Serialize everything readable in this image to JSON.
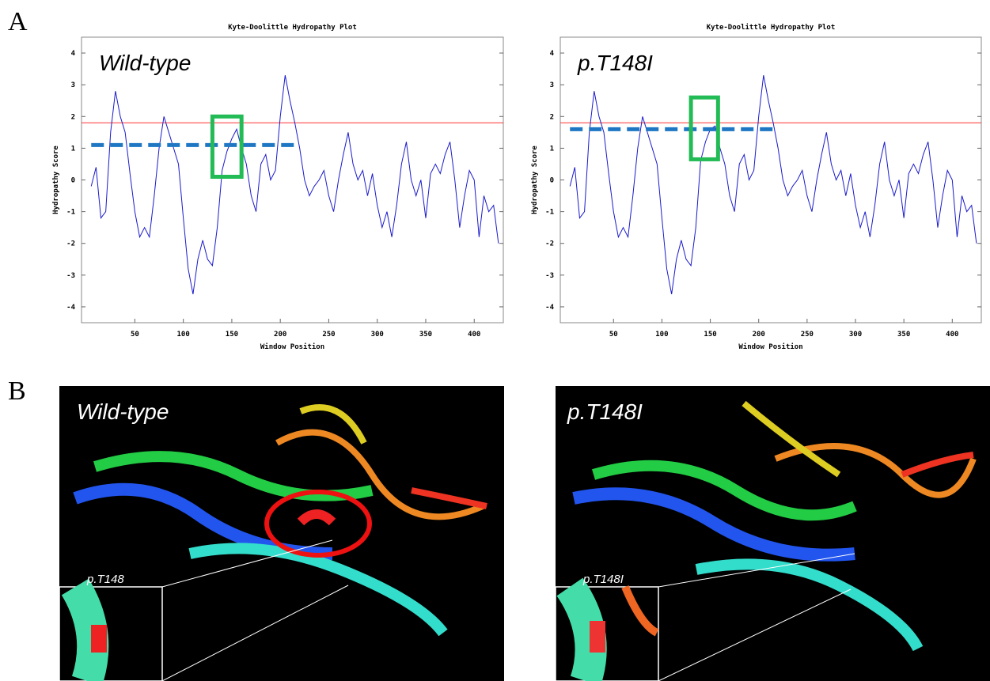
{
  "panel_labels": [
    "A",
    "B"
  ],
  "chart_data": [
    {
      "type": "line",
      "title": "Kyte-Doolittle Hydropathy Plot",
      "annotation": "Wild-type",
      "x_label": "Window Position",
      "y_label": "Hydropathy Score",
      "color": "#1a1acc",
      "xlim": [
        -5,
        430
      ],
      "ylim": [
        -4.5,
        4.5
      ],
      "xticks": [
        50,
        100,
        150,
        200,
        250,
        300,
        350,
        400
      ],
      "yticks": [
        -4,
        -3,
        -2,
        -1,
        0,
        1,
        2,
        3,
        4
      ],
      "threshold": {
        "value": 1.8,
        "color": "#ff3333"
      },
      "mean_line": {
        "value": 1.1,
        "x": [
          5,
          220
        ],
        "color": "#1f77c4"
      },
      "highlight_box": {
        "x": [
          130,
          160
        ],
        "y": [
          0.1,
          2.0
        ],
        "color": "#22bb55"
      },
      "x": [
        5,
        10,
        15,
        20,
        25,
        30,
        35,
        40,
        45,
        50,
        55,
        60,
        65,
        70,
        75,
        80,
        85,
        90,
        95,
        100,
        105,
        110,
        115,
        120,
        125,
        130,
        135,
        140,
        145,
        150,
        155,
        160,
        165,
        170,
        175,
        180,
        185,
        190,
        195,
        200,
        205,
        210,
        215,
        220,
        225,
        230,
        235,
        240,
        245,
        250,
        255,
        260,
        265,
        270,
        275,
        280,
        285,
        290,
        295,
        300,
        305,
        310,
        315,
        320,
        325,
        330,
        335,
        340,
        345,
        350,
        355,
        360,
        365,
        370,
        375,
        380,
        385,
        390,
        395,
        400,
        405,
        410,
        415,
        420,
        425
      ],
      "values": [
        -0.2,
        0.4,
        -1.2,
        -1.0,
        1.5,
        2.8,
        2.0,
        1.5,
        0.2,
        -1.0,
        -1.8,
        -1.5,
        -1.8,
        -0.5,
        1.0,
        2.0,
        1.5,
        1.0,
        0.5,
        -1.2,
        -2.8,
        -3.6,
        -2.5,
        -1.9,
        -2.5,
        -2.7,
        -1.5,
        0.3,
        0.9,
        1.3,
        1.6,
        1.0,
        0.5,
        -0.5,
        -1.0,
        0.5,
        0.8,
        0.0,
        0.3,
        2.0,
        3.3,
        2.5,
        1.8,
        1.0,
        0.0,
        -0.5,
        -0.2,
        0.0,
        0.3,
        -0.5,
        -1.0,
        0.0,
        0.8,
        1.5,
        0.5,
        0.0,
        0.3,
        -0.5,
        0.2,
        -0.8,
        -1.5,
        -1.0,
        -1.8,
        -0.8,
        0.5,
        1.2,
        0.0,
        -0.5,
        0.0,
        -1.2,
        0.2,
        0.5,
        0.2,
        0.8,
        1.2,
        0.0,
        -1.5,
        -0.5,
        0.3,
        0.0,
        -1.8,
        -0.5,
        -1.0,
        -0.8,
        -2.0
      ]
    },
    {
      "type": "line",
      "title": "Kyte-Doolittle Hydropathy Plot",
      "annotation": "p.T148I",
      "x_label": "Window Position",
      "y_label": "Hydropathy Score",
      "color": "#1a1acc",
      "xlim": [
        -5,
        430
      ],
      "ylim": [
        -4.5,
        4.5
      ],
      "xticks": [
        50,
        100,
        150,
        200,
        250,
        300,
        350,
        400
      ],
      "yticks": [
        -4,
        -3,
        -2,
        -1,
        0,
        1,
        2,
        3,
        4
      ],
      "threshold": {
        "value": 1.8,
        "color": "#ff3333"
      },
      "mean_line": {
        "value": 1.6,
        "x": [
          5,
          218
        ],
        "color": "#1f77c4"
      },
      "highlight_box": {
        "x": [
          130,
          158
        ],
        "y": [
          0.65,
          2.6
        ],
        "color": "#22bb55"
      },
      "x": [
        5,
        10,
        15,
        20,
        25,
        30,
        35,
        40,
        45,
        50,
        55,
        60,
        65,
        70,
        75,
        80,
        85,
        90,
        95,
        100,
        105,
        110,
        115,
        120,
        125,
        130,
        135,
        140,
        145,
        150,
        155,
        160,
        165,
        170,
        175,
        180,
        185,
        190,
        195,
        200,
        205,
        210,
        215,
        220,
        225,
        230,
        235,
        240,
        245,
        250,
        255,
        260,
        265,
        270,
        275,
        280,
        285,
        290,
        295,
        300,
        305,
        310,
        315,
        320,
        325,
        330,
        335,
        340,
        345,
        350,
        355,
        360,
        365,
        370,
        375,
        380,
        385,
        390,
        395,
        400,
        405,
        410,
        415,
        420,
        425
      ],
      "values": [
        -0.2,
        0.4,
        -1.2,
        -1.0,
        1.5,
        2.8,
        2.0,
        1.5,
        0.2,
        -1.0,
        -1.8,
        -1.5,
        -1.8,
        -0.5,
        1.0,
        2.0,
        1.5,
        1.0,
        0.5,
        -1.2,
        -2.8,
        -3.6,
        -2.5,
        -1.9,
        -2.5,
        -2.7,
        -1.5,
        0.6,
        1.2,
        1.6,
        1.7,
        1.0,
        0.5,
        -0.5,
        -1.0,
        0.5,
        0.8,
        0.0,
        0.3,
        2.0,
        3.3,
        2.5,
        1.8,
        1.0,
        0.0,
        -0.5,
        -0.2,
        0.0,
        0.3,
        -0.5,
        -1.0,
        0.0,
        0.8,
        1.5,
        0.5,
        0.0,
        0.3,
        -0.5,
        0.2,
        -0.8,
        -1.5,
        -1.0,
        -1.8,
        -0.8,
        0.5,
        1.2,
        0.0,
        -0.5,
        0.0,
        -1.2,
        0.2,
        0.5,
        0.2,
        0.8,
        1.2,
        0.0,
        -1.5,
        -0.5,
        0.3,
        0.0,
        -1.8,
        -0.5,
        -1.0,
        -0.8,
        -2.0
      ]
    }
  ],
  "panel_b": [
    {
      "title": "Wild-type",
      "inset_label": "p.T148"
    },
    {
      "title": "p.T148I",
      "inset_label": "p.T148I"
    }
  ]
}
